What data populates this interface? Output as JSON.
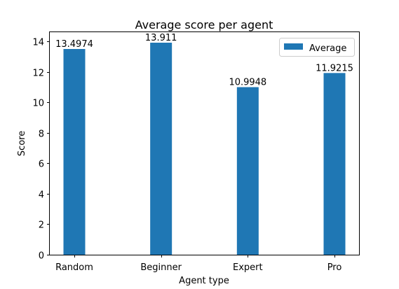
{
  "chart_data": {
    "type": "bar",
    "title": "Average score per agent",
    "xlabel": "Agent type",
    "ylabel": "Score",
    "categories": [
      "Random",
      "Beginner",
      "Expert",
      "Pro"
    ],
    "series": [
      {
        "name": "Average",
        "values": [
          13.4974,
          13.911,
          10.9948,
          11.9215
        ],
        "labels": [
          "13.4974",
          "13.911",
          "10.9948",
          "11.9215"
        ],
        "color": "#1f77b4"
      }
    ],
    "ylim": [
      0,
      14.6
    ],
    "yticks": [
      0,
      2,
      4,
      6,
      8,
      10,
      12,
      14
    ],
    "grid": false,
    "legend_position": "top-right"
  }
}
